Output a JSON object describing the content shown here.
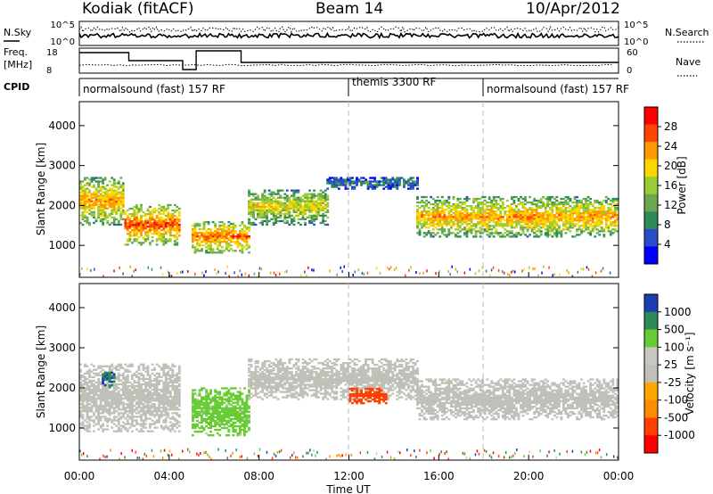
{
  "header": {
    "station": "Kodiak (fitACF)",
    "beam": "Beam 14",
    "date": "10/Apr/2012"
  },
  "side_labels": {
    "nsky": "N.Sky",
    "freq": "Freq.",
    "freq_unit": "[MHz]",
    "cpid": "CPID",
    "nsearch": "N.Search",
    "nave": "Nave"
  },
  "top_panel_ticks": {
    "noise_left": [
      "10^5",
      "10^0"
    ],
    "noise_right": [
      "10^5",
      "10^0"
    ],
    "freq_left": [
      "18",
      "8"
    ],
    "nave_right": [
      "60",
      "0"
    ]
  },
  "cpid_modes": [
    {
      "label": "normalsound (fast) 157 RF",
      "start_hour": 0
    },
    {
      "label": "themis 3300 RF",
      "start_hour": 12
    },
    {
      "label": "normalsound (fast) 157 RF",
      "start_hour": 18
    }
  ],
  "x_axis": {
    "label": "Time UT",
    "ticks": [
      "00:00",
      "04:00",
      "08:00",
      "12:00",
      "16:00",
      "20:00",
      "00:00"
    ]
  },
  "colors": {
    "power_scale": [
      "#0000ff",
      "#2a4cc8",
      "#2e8b57",
      "#6aa84f",
      "#9acd32",
      "#ffd700",
      "#ff9900",
      "#ff4500",
      "#ff0000"
    ],
    "velocity_scale": [
      "#ff0000",
      "#ff4000",
      "#ff8c00",
      "#ffa500",
      "#c0c0b8",
      "#c8c8c0",
      "#66cc33",
      "#2e8b57",
      "#1a3fb0"
    ]
  },
  "chart_data": [
    {
      "type": "heatmap",
      "title": "",
      "xlabel": "",
      "ylabel": "Slant Range [km]",
      "yticks": [
        "1000",
        "2000",
        "3000",
        "4000"
      ],
      "ylim": [
        200,
        4600
      ],
      "xlim_hours": [
        0,
        24
      ],
      "colorbar": {
        "label": "Power [dB]",
        "ticks": [
          "28",
          "24",
          "20",
          "16",
          "12",
          "8",
          "4"
        ],
        "range": [
          0,
          32
        ]
      },
      "regions": [
        {
          "t_start": 0.0,
          "t_end": 2.0,
          "r_low": 1500,
          "r_high": 2700,
          "value": 22
        },
        {
          "t_start": 2.0,
          "t_end": 4.5,
          "r_low": 1000,
          "r_high": 2000,
          "value": 26
        },
        {
          "t_start": 5.0,
          "t_end": 7.5,
          "r_low": 800,
          "r_high": 1600,
          "value": 24
        },
        {
          "t_start": 7.5,
          "t_end": 11.0,
          "r_low": 1500,
          "r_high": 2400,
          "value": 18
        },
        {
          "t_start": 11.0,
          "t_end": 15.0,
          "r_low": 2400,
          "r_high": 2700,
          "value": 8
        },
        {
          "t_start": 15.0,
          "t_end": 24.0,
          "r_low": 1200,
          "r_high": 2200,
          "value": 22
        }
      ]
    },
    {
      "type": "heatmap",
      "title": "",
      "xlabel": "Time UT",
      "ylabel": "Slant Range [km]",
      "yticks": [
        "1000",
        "2000",
        "3000",
        "4000"
      ],
      "ylim": [
        200,
        4600
      ],
      "xlim_hours": [
        0,
        24
      ],
      "colorbar": {
        "label": "Velocity [m s⁻¹]",
        "ticks": [
          "1000",
          "500",
          "100",
          "25",
          "-25",
          "-100",
          "-500",
          "-1000"
        ]
      },
      "regions": [
        {
          "t_start": 0.0,
          "t_end": 4.5,
          "r_low": 900,
          "r_high": 2600,
          "value": 0
        },
        {
          "t_start": 1.0,
          "t_end": 1.6,
          "r_low": 2000,
          "r_high": 2400,
          "value": 700
        },
        {
          "t_start": 5.0,
          "t_end": 7.5,
          "r_low": 800,
          "r_high": 2000,
          "value": 150
        },
        {
          "t_start": 7.5,
          "t_end": 15.0,
          "r_low": 1700,
          "r_high": 2700,
          "value": 0
        },
        {
          "t_start": 12.0,
          "t_end": 13.6,
          "r_low": 1600,
          "r_high": 2000,
          "value": -400
        },
        {
          "t_start": 15.0,
          "t_end": 24.0,
          "r_low": 1200,
          "r_high": 2200,
          "value": 0
        }
      ]
    }
  ]
}
